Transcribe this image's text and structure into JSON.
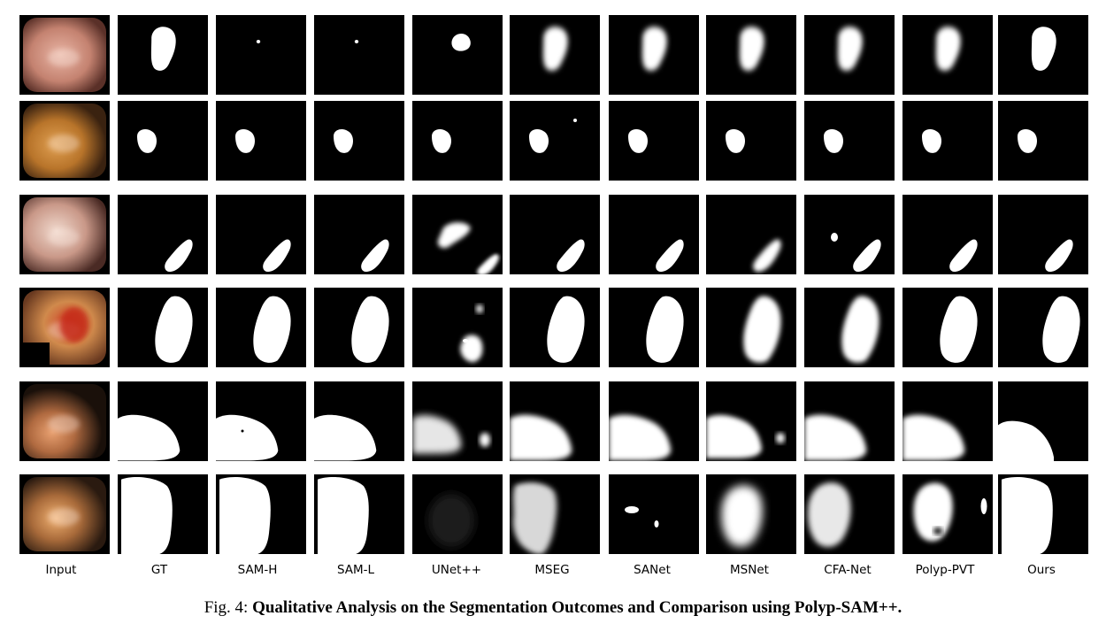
{
  "figure": {
    "column_labels": [
      "Input",
      "GT",
      "SAM-H",
      "SAM-L",
      "UNet++",
      "MSEG",
      "SANet",
      "MSNet",
      "CFA-Net",
      "Polyp-PVT",
      "Ours"
    ],
    "rows": 6,
    "caption_prefix": "Fig. 4:",
    "caption_title": "Qualitative Analysis on the Segmentation Outcomes and Comparison using Polyp-SAM++."
  },
  "colors": {
    "mask_background": "#000000",
    "mask_foreground": "#ffffff",
    "page_background": "#ffffff"
  }
}
